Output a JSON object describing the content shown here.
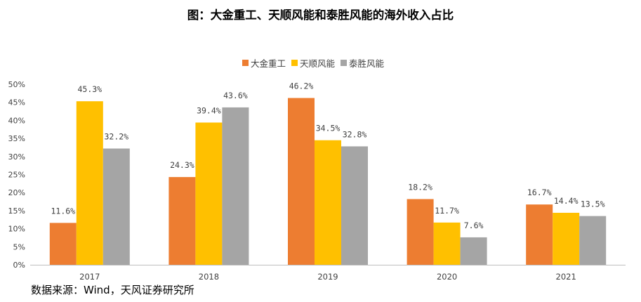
{
  "title": "图：大金重工、天顺风能和泰胜风能的海外收入占比",
  "source_note": "数据来源：Wind，天风证券研究所",
  "chart_data": {
    "type": "bar",
    "categories": [
      "2017",
      "2018",
      "2019",
      "2020",
      "2021"
    ],
    "series": [
      {
        "name": "大金重工",
        "color": "#ED7D31",
        "values": [
          11.6,
          24.3,
          46.2,
          18.2,
          16.7
        ]
      },
      {
        "name": "天顺风能",
        "color": "#FFC000",
        "values": [
          45.3,
          39.4,
          34.5,
          11.7,
          14.4
        ]
      },
      {
        "name": "泰胜风能",
        "color": "#A5A5A5",
        "values": [
          32.2,
          43.6,
          32.8,
          7.6,
          13.5
        ]
      }
    ],
    "data_labels": [
      [
        "11.6%",
        "24.3%",
        "46.2%",
        "18.2%",
        "16.7%"
      ],
      [
        "45.3%",
        "39.4%",
        "34.5%",
        "11.7%",
        "14.4%"
      ],
      [
        "32.2%",
        "43.6%",
        "32.8%",
        "7.6%",
        "13.5%"
      ]
    ],
    "ylim": [
      0,
      50
    ],
    "yticks": [
      "0%",
      "5%",
      "10%",
      "15%",
      "20%",
      "25%",
      "30%",
      "35%",
      "40%",
      "45%",
      "50%"
    ],
    "legend_position": "top-center",
    "grid": false
  }
}
